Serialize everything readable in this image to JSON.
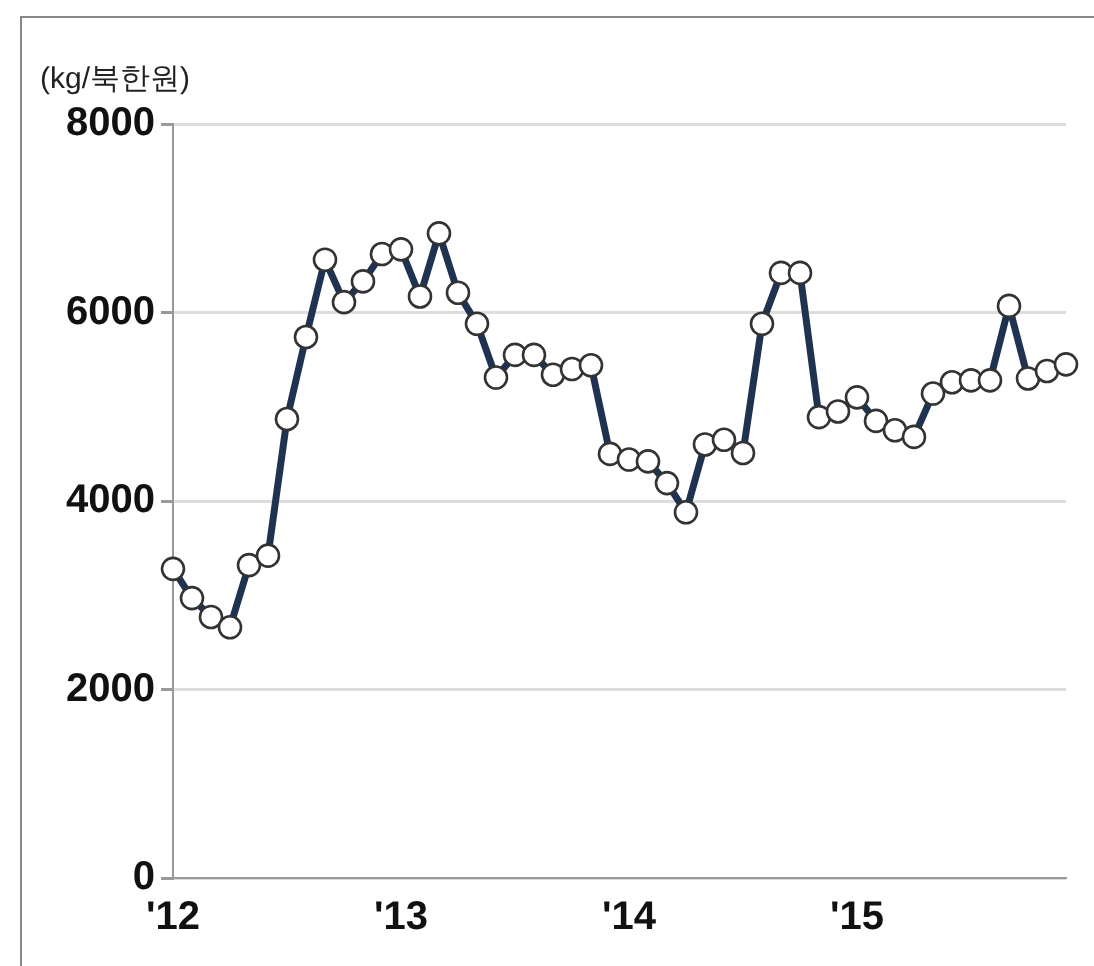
{
  "chart_data": {
    "type": "line",
    "ylabel": "(kg/북한원)",
    "categories": [
      "'12",
      null,
      null,
      null,
      null,
      null,
      null,
      null,
      null,
      null,
      null,
      null,
      "'13",
      null,
      null,
      null,
      null,
      null,
      null,
      null,
      null,
      null,
      null,
      null,
      "'14",
      null,
      null,
      null,
      null,
      null,
      null,
      null,
      null,
      null,
      null,
      null,
      "'15",
      null,
      null,
      null,
      null,
      null,
      null,
      null,
      null,
      null,
      null,
      null
    ],
    "series": [
      {
        "color": "#1f3350",
        "values": [
          3280,
          2970,
          2770,
          2660,
          3320,
          3420,
          4870,
          5740,
          6560,
          6110,
          6330,
          6620,
          6670,
          6170,
          6840,
          6210,
          5880,
          5310,
          5550,
          5550,
          5340,
          5400,
          5440,
          4500,
          4440,
          4420,
          4190,
          3880,
          4600,
          4650,
          4510,
          5880,
          6420,
          6420,
          4890,
          4950,
          5100,
          4850,
          4750,
          4680,
          5140,
          5260,
          5280,
          5280,
          6070,
          5300,
          5380,
          5450
        ]
      }
    ],
    "ylim": [
      0,
      8000
    ],
    "yticks": [
      0,
      2000,
      4000,
      6000,
      8000
    ],
    "grid": "y",
    "marker": "circle",
    "line_style": "solid"
  }
}
